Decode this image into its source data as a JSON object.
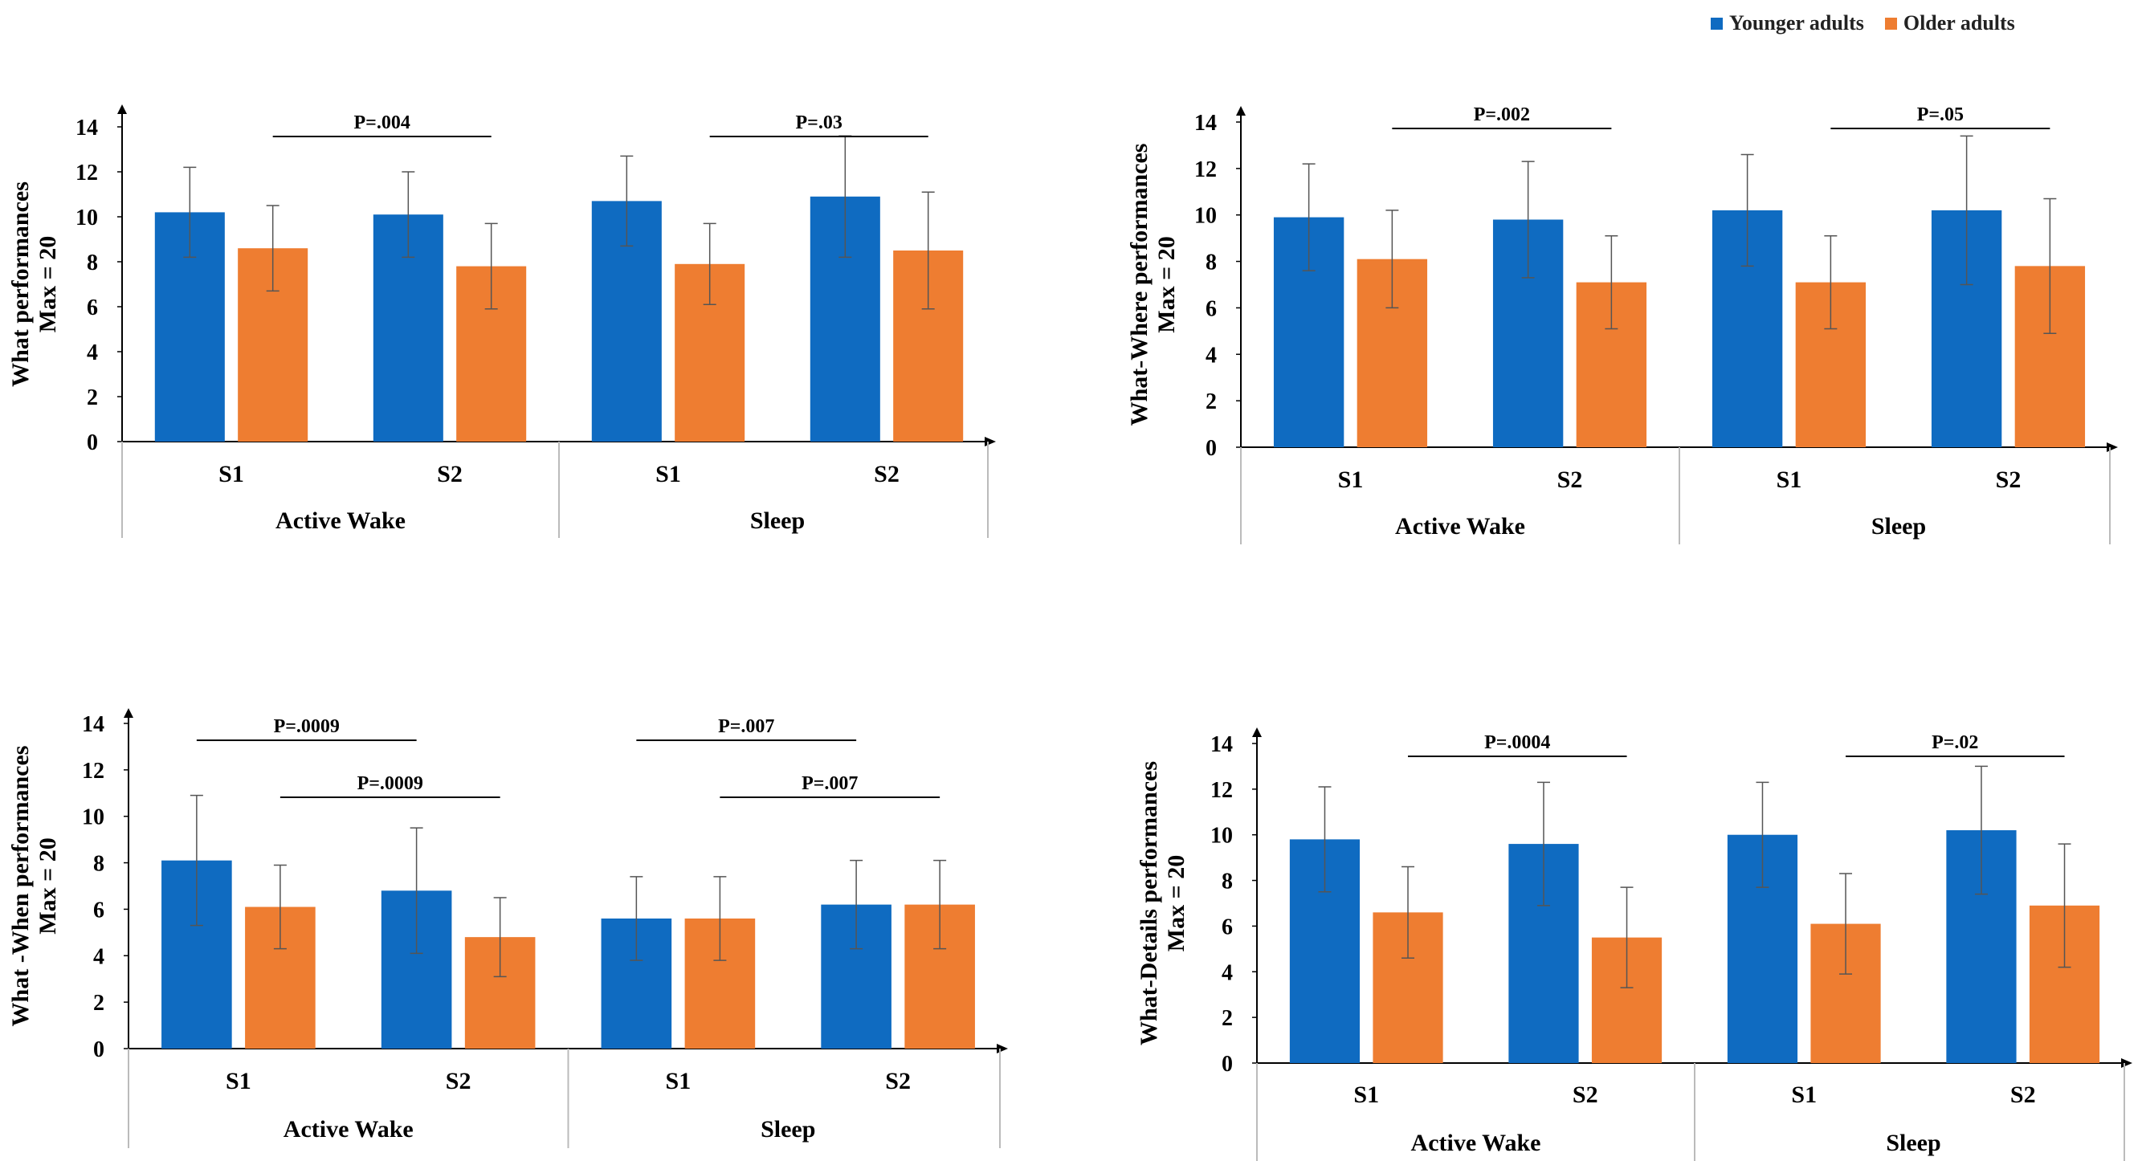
{
  "legend": {
    "younger_label": "Younger adults",
    "older_label": "Older adults",
    "younger_color": "#0F6BC1",
    "older_color": "#EE7D31"
  },
  "chart_data": [
    {
      "type": "bar",
      "ylabel_line1": "What performances",
      "ylabel_line2": "Max = 20",
      "ylim": [
        0,
        14
      ],
      "yticks": [
        0,
        2,
        4,
        6,
        8,
        10,
        12,
        14
      ],
      "groups": [
        "Active Wake",
        "Sleep"
      ],
      "categories": [
        "S1",
        "S2",
        "S1",
        "S2"
      ],
      "series": [
        {
          "name": "Younger adults",
          "values": [
            10.2,
            10.1,
            10.7,
            10.9
          ],
          "errors": [
            2.0,
            1.9,
            2.0,
            2.7
          ]
        },
        {
          "name": "Older adults",
          "values": [
            8.6,
            7.8,
            7.9,
            8.5
          ],
          "errors": [
            1.9,
            1.9,
            1.8,
            2.6
          ]
        }
      ],
      "annotations": [
        {
          "text": "P=.004",
          "from": 0,
          "to": 1,
          "level": 1
        },
        {
          "text": "P=.03",
          "from": 2,
          "to": 3,
          "level": 1
        }
      ]
    },
    {
      "type": "bar",
      "ylabel_line1": "What-Where  performances",
      "ylabel_line2": "Max = 20",
      "ylim": [
        0,
        14
      ],
      "yticks": [
        0,
        2,
        4,
        6,
        8,
        10,
        12,
        14
      ],
      "groups": [
        "Active Wake",
        "Sleep"
      ],
      "categories": [
        "S1",
        "S2",
        "S1",
        "S2"
      ],
      "series": [
        {
          "name": "Younger adults",
          "values": [
            9.9,
            9.8,
            10.2,
            10.2
          ],
          "errors": [
            2.3,
            2.5,
            2.4,
            3.2
          ]
        },
        {
          "name": "Older adults",
          "values": [
            8.1,
            7.1,
            7.1,
            7.8
          ],
          "errors": [
            2.1,
            2.0,
            2.0,
            2.9
          ]
        }
      ],
      "annotations": [
        {
          "text": "P=.002",
          "from": 0,
          "to": 1,
          "level": 1
        },
        {
          "text": "P=.05",
          "from": 2,
          "to": 3,
          "level": 1
        }
      ]
    },
    {
      "type": "bar",
      "ylabel_line1": "What -When performances",
      "ylabel_line2": "Max = 20",
      "ylim": [
        0,
        14
      ],
      "yticks": [
        0,
        2,
        4,
        6,
        8,
        10,
        12,
        14
      ],
      "groups": [
        "Active Wake",
        "Sleep"
      ],
      "categories": [
        "S1",
        "S2",
        "S1",
        "S2"
      ],
      "series": [
        {
          "name": "Younger adults",
          "values": [
            8.1,
            6.8,
            5.6,
            6.2
          ],
          "errors": [
            2.8,
            2.7,
            1.8,
            1.9
          ]
        },
        {
          "name": "Older adults",
          "values": [
            6.1,
            4.8,
            5.6,
            6.2
          ],
          "errors": [
            1.8,
            1.7,
            1.8,
            1.9
          ]
        }
      ],
      "annotations": [
        {
          "text": "P=.0009",
          "from": 0,
          "to": 0,
          "level": 2
        },
        {
          "text": "P=.0009",
          "from": 0,
          "to": 1,
          "level": 1
        },
        {
          "text": "P=.007",
          "from": 2,
          "to": 2,
          "level": 2
        },
        {
          "text": "P=.007",
          "from": 2,
          "to": 3,
          "level": 1
        }
      ]
    },
    {
      "type": "bar",
      "ylabel_line1": "What-Details performances",
      "ylabel_line2": "Max = 20",
      "ylim": [
        0,
        14
      ],
      "yticks": [
        0,
        2,
        4,
        6,
        8,
        10,
        12,
        14
      ],
      "groups": [
        "Active Wake",
        "Sleep"
      ],
      "categories": [
        "S1",
        "S2",
        "S1",
        "S2"
      ],
      "series": [
        {
          "name": "Younger adults",
          "values": [
            9.8,
            9.6,
            10.0,
            10.2
          ],
          "errors": [
            2.3,
            2.7,
            2.3,
            2.8
          ]
        },
        {
          "name": "Older adults",
          "values": [
            6.6,
            5.5,
            6.1,
            6.9
          ],
          "errors": [
            2.0,
            2.2,
            2.2,
            2.7
          ]
        }
      ],
      "annotations": [
        {
          "text": "P=.0004",
          "from": 0,
          "to": 1,
          "level": 1
        },
        {
          "text": "P=.02",
          "from": 2,
          "to": 3,
          "level": 1
        }
      ]
    }
  ]
}
